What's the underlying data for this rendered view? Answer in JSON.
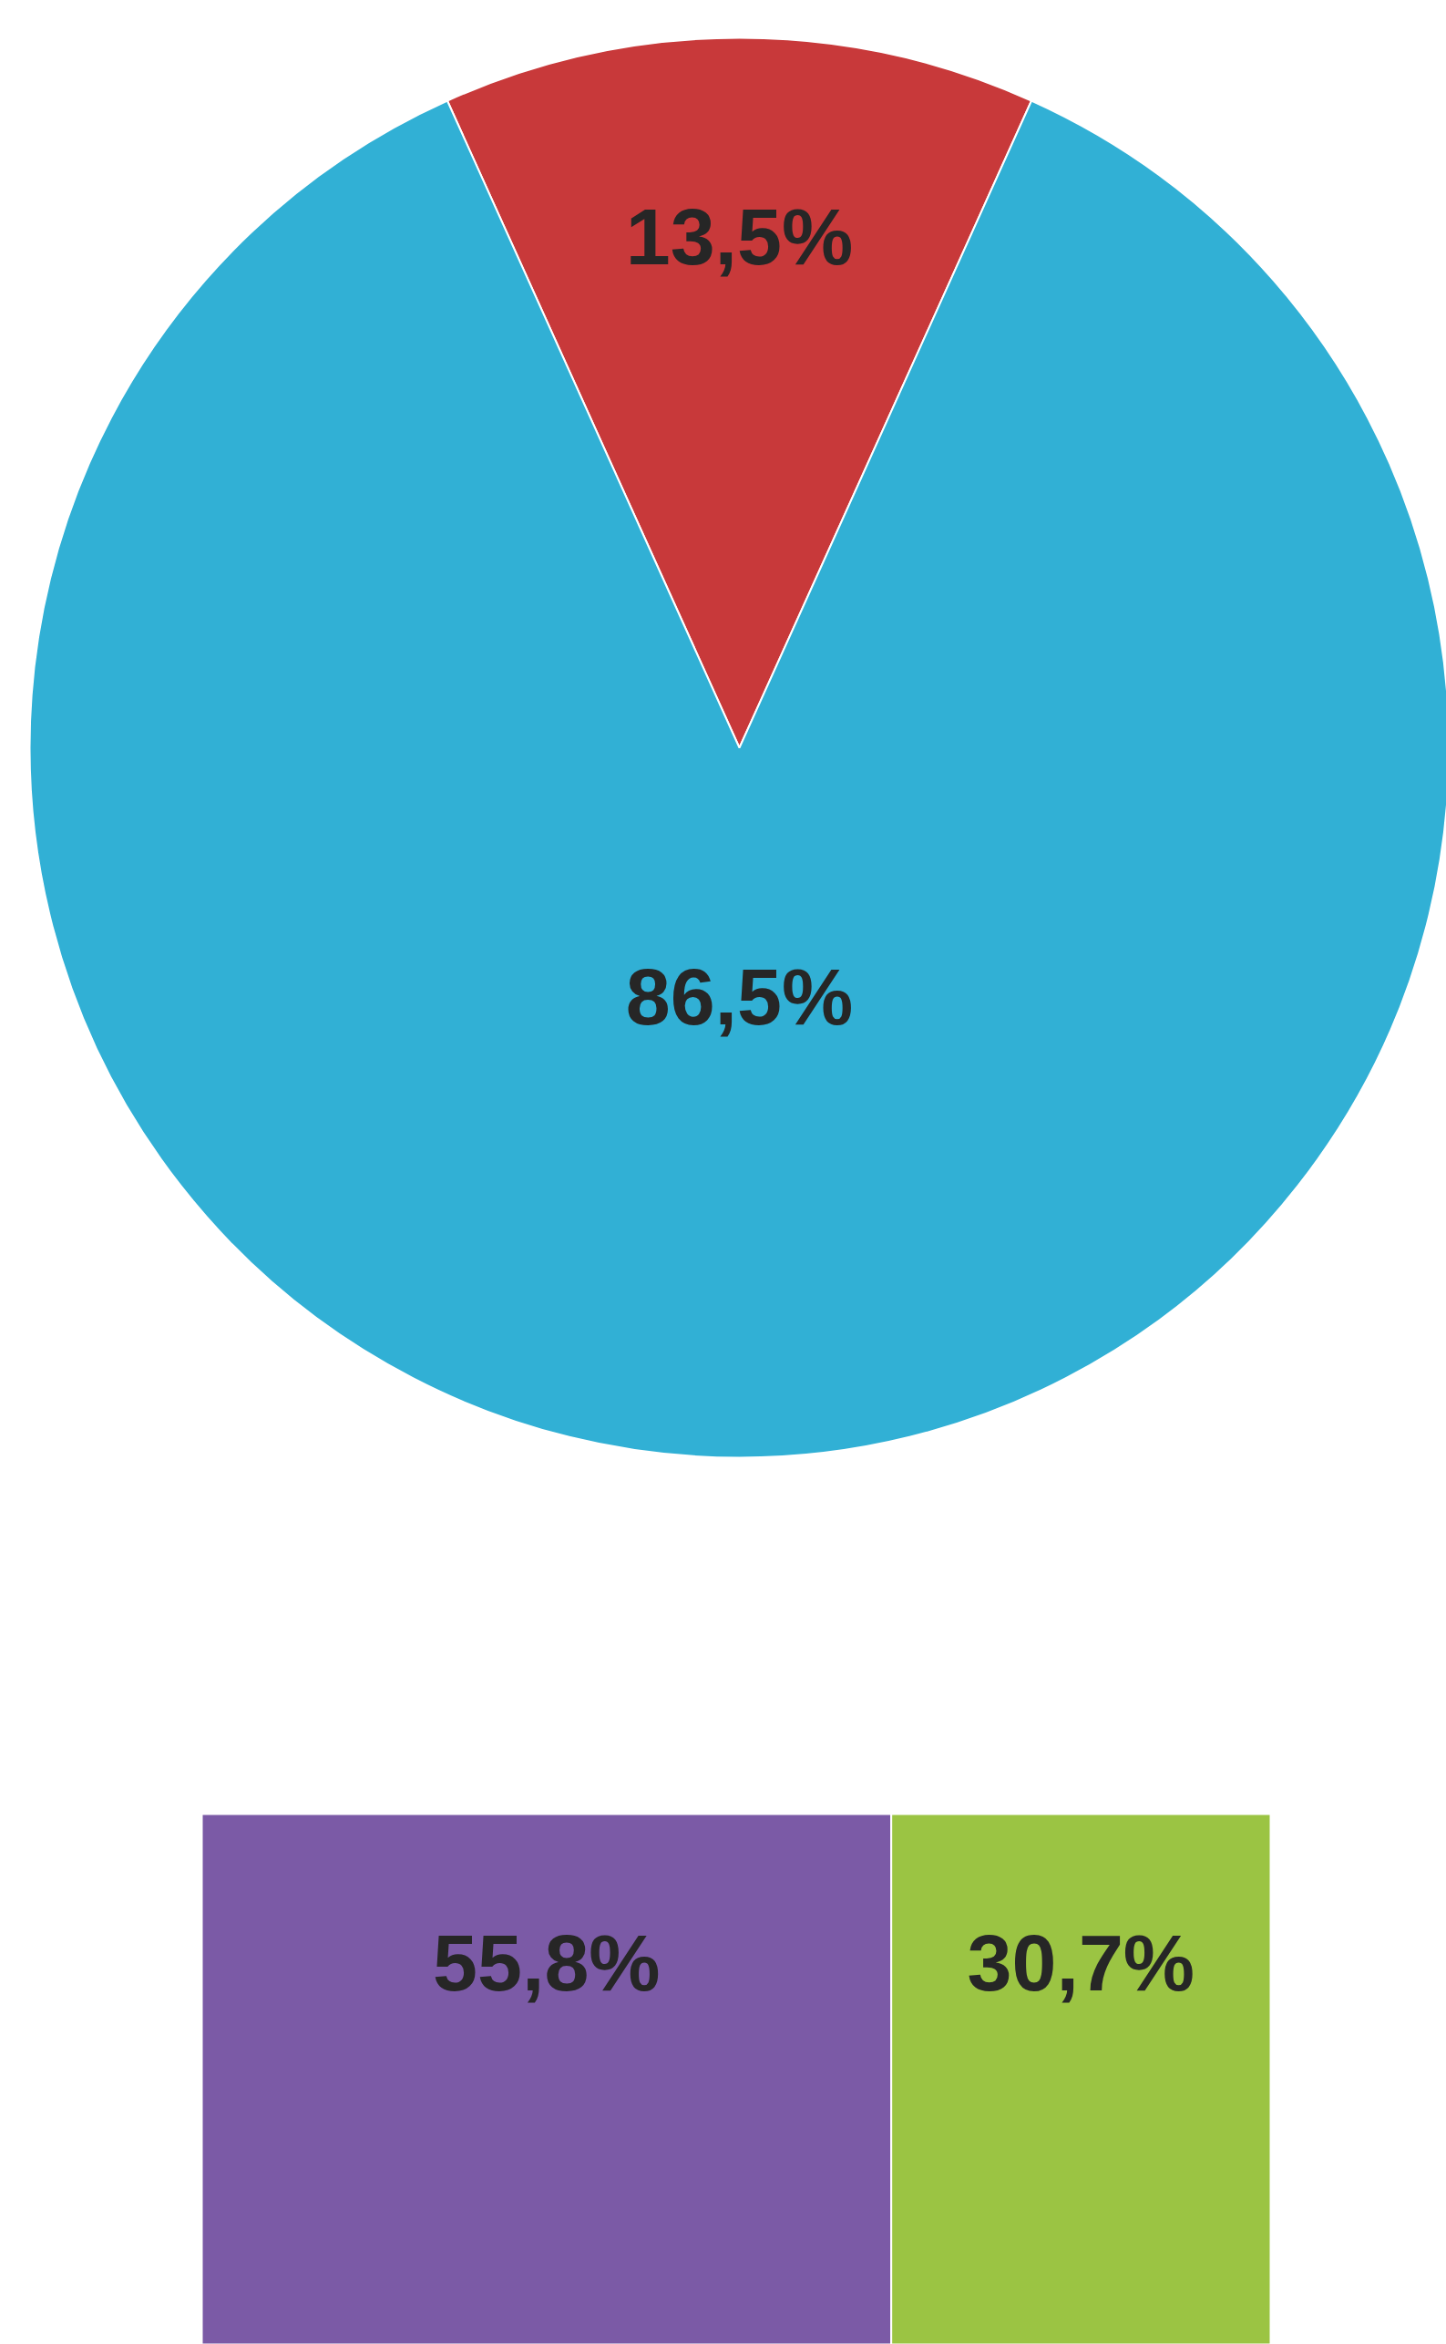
{
  "chart_data": [
    {
      "type": "pie",
      "categories": [
        null,
        null
      ],
      "values": [
        13.5,
        86.5
      ],
      "colors": [
        "#c8393a",
        "#31b0d5"
      ],
      "value_labels": [
        "13,5%",
        "86,5%"
      ]
    },
    {
      "type": "bar",
      "orientation": "horizontal",
      "stacked": true,
      "categories": [
        null
      ],
      "series": [
        {
          "color": "#7b5aa6",
          "values": [
            55.8
          ],
          "value_labels": [
            "55,8%"
          ]
        },
        {
          "color": "#9bc443",
          "values": [
            30.7
          ],
          "value_labels": [
            "30,7%"
          ]
        }
      ]
    }
  ]
}
